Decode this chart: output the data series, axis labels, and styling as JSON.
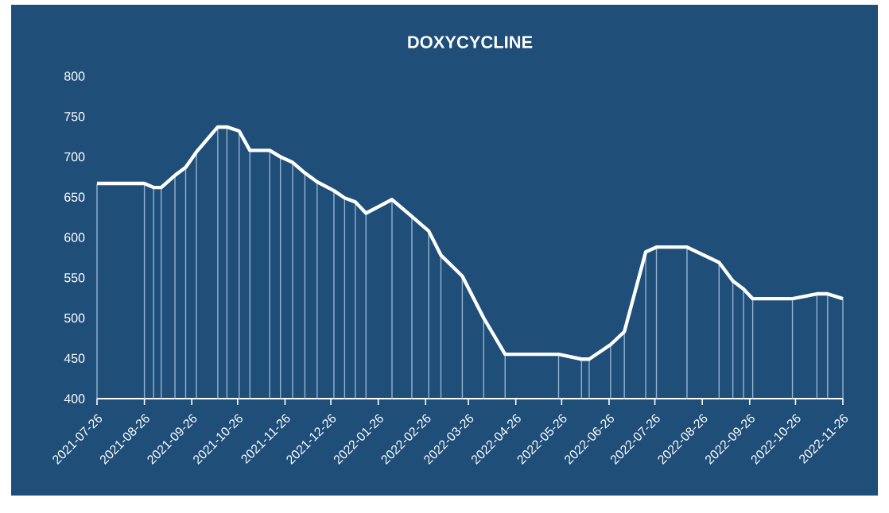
{
  "chart_data": {
    "type": "line",
    "title": "DOXYCYCLINE",
    "x": [
      "2021-07-26",
      "2021-08-26",
      "2021-09-01",
      "2021-09-06",
      "2021-09-15",
      "2021-09-22",
      "2021-09-29",
      "2021-10-13",
      "2021-10-19",
      "2021-10-27",
      "2021-11-03",
      "2021-11-16",
      "2021-11-23",
      "2021-12-01",
      "2021-12-09",
      "2021-12-17",
      "2021-12-28",
      "2022-01-04",
      "2022-01-11",
      "2022-01-18",
      "2022-02-04",
      "2022-02-17",
      "2022-02-28",
      "2022-03-08",
      "2022-03-22",
      "2022-04-05",
      "2022-04-19",
      "2022-05-24",
      "2022-06-08",
      "2022-06-13",
      "2022-06-27",
      "2022-07-06",
      "2022-07-20",
      "2022-07-27",
      "2022-08-16",
      "2022-09-06",
      "2022-09-15",
      "2022-09-22",
      "2022-09-28",
      "2022-10-24",
      "2022-11-09",
      "2022-11-16",
      "2022-11-26"
    ],
    "series": [
      {
        "type": "bar",
        "color": "#96b4d2",
        "values": [
          667,
          667,
          662,
          662,
          677,
          687,
          706,
          737,
          737,
          732,
          708,
          708,
          700,
          693,
          680,
          669,
          658,
          649,
          644,
          630,
          647,
          626,
          608,
          578,
          552,
          500,
          455,
          455,
          449,
          449,
          467,
          483,
          582,
          588,
          588,
          569,
          546,
          536,
          524,
          524,
          530,
          530,
          524
        ]
      },
      {
        "color": "#ffffff",
        "values": [
          667,
          667,
          662,
          662,
          677,
          687,
          706,
          737,
          737,
          732,
          708,
          708,
          700,
          693,
          680,
          669,
          658,
          649,
          644,
          630,
          647,
          626,
          608,
          578,
          552,
          500,
          455,
          455,
          449,
          449,
          467,
          483,
          582,
          588,
          588,
          569,
          546,
          536,
          524,
          524,
          530,
          530,
          524
        ]
      }
    ],
    "xlim": [
      "2021-07-26",
      "2022-11-26"
    ],
    "xticks": [
      "2021-07-26",
      "2021-08-26",
      "2021-09-26",
      "2021-10-26",
      "2021-11-26",
      "2021-12-26",
      "2022-01-26",
      "2022-02-26",
      "2022-03-26",
      "2022-04-26",
      "2022-05-26",
      "2022-06-26",
      "2022-07-26",
      "2022-08-26",
      "2022-09-26",
      "2022-10-26",
      "2022-11-26"
    ],
    "ylim": [
      400,
      800
    ],
    "yticks": [
      400,
      450,
      500,
      550,
      600,
      650,
      700,
      750,
      800
    ],
    "grid": false,
    "marker": "none",
    "line_style": "solid"
  }
}
